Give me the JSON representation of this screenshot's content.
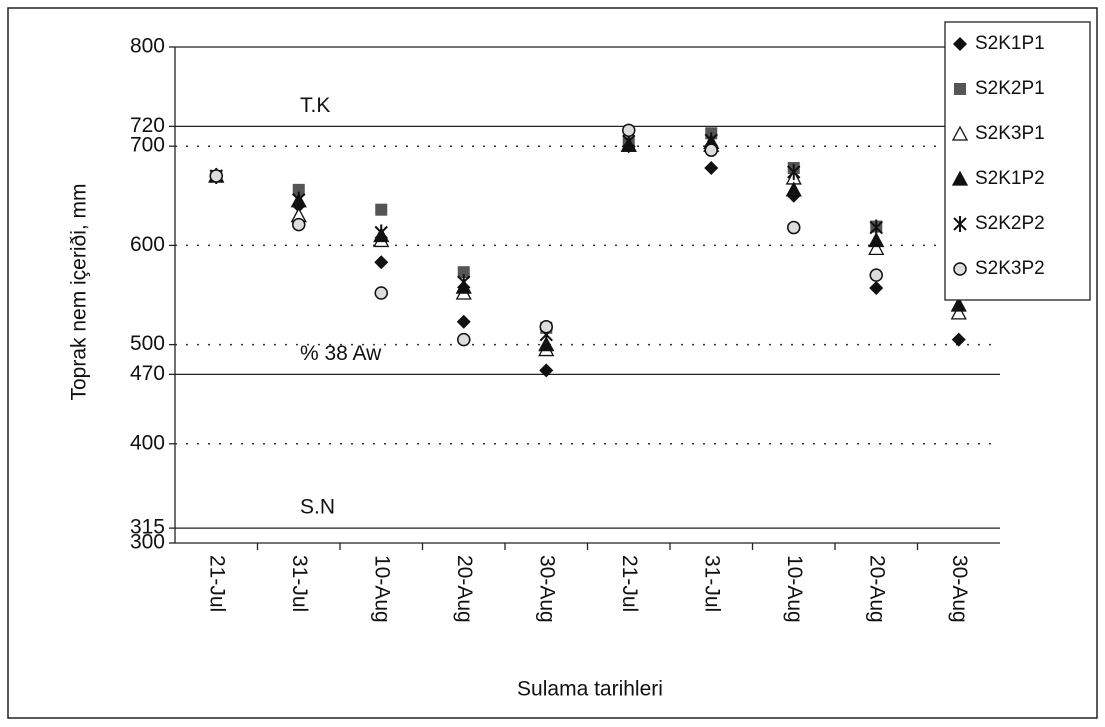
{
  "chart_data": {
    "type": "scatter",
    "y_axis_label": "Toprak nem içeriði, mm",
    "x_axis_label": "Sulama tarihleri",
    "categories": [
      "21-Jul",
      "31-Jul",
      "10-Aug",
      "20-Aug",
      "30-Aug",
      "21-Jul",
      "31-Jul",
      "10-Aug",
      "20-Aug",
      "30-Aug"
    ],
    "ylim": [
      300,
      800
    ],
    "yticks": [
      300,
      315,
      400,
      470,
      500,
      600,
      700,
      720,
      800
    ],
    "reference_lines": [
      {
        "label": "T.K",
        "value": 720
      },
      {
        "label": "% 38 Aw",
        "value": 470
      },
      {
        "label": "S.N",
        "value": 315
      }
    ],
    "grid": true,
    "legend": "top-right",
    "series": [
      {
        "name": "S2K1P1",
        "marker": "diamond",
        "color": "#111111",
        "values": [
          670,
          640,
          583,
          523,
          474,
          700,
          678,
          650,
          557,
          505
        ]
      },
      {
        "name": "S2K2P1",
        "marker": "square",
        "color": "#555555",
        "values": [
          670,
          656,
          636,
          573,
          517,
          703,
          713,
          678,
          619,
          555
        ]
      },
      {
        "name": "S2K3P1",
        "marker": "triangle-open",
        "color": "#111111",
        "values": [
          670,
          630,
          605,
          552,
          495,
          701,
          701,
          668,
          597,
          532
        ]
      },
      {
        "name": "S2K1P2",
        "marker": "triangle",
        "color": "#111111",
        "values": [
          670,
          645,
          610,
          558,
          500,
          701,
          704,
          656,
          605,
          540
        ]
      },
      {
        "name": "S2K2P2",
        "marker": "star",
        "color": "#111111",
        "values": [
          670,
          646,
          613,
          563,
          510,
          705,
          706,
          674,
          618,
          553
        ]
      },
      {
        "name": "S2K3P2",
        "marker": "circle",
        "color": "#111111",
        "values": [
          670,
          621,
          552,
          505,
          518,
          716,
          696,
          618,
          570,
          577
        ]
      }
    ]
  }
}
